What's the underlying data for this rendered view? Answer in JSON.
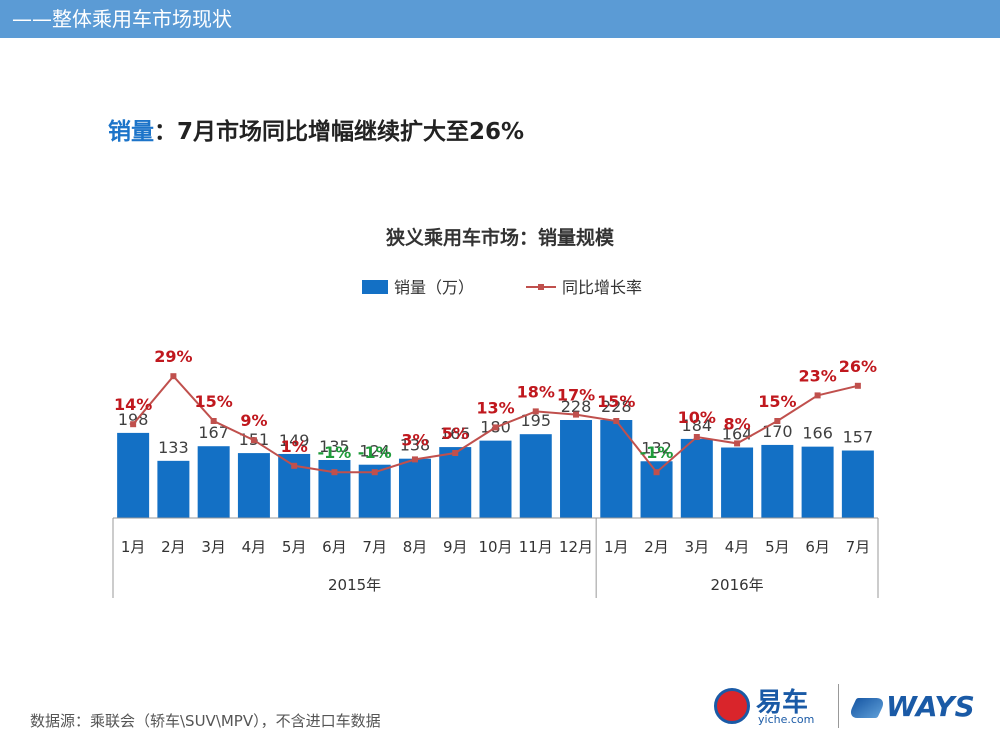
{
  "header": {
    "title": "——整体乘用车市场现状"
  },
  "headline": {
    "key": "销量",
    "sep": "：",
    "rest": "7月市场同比增幅继续扩大至26%"
  },
  "chart_data": {
    "type": "bar",
    "title": "狭义乘用车市场：销量规模",
    "legend": {
      "placement": "top",
      "bar_label": "销量（万）",
      "line_label": "同比增长率"
    },
    "categories": [
      "1月",
      "2月",
      "3月",
      "4月",
      "5月",
      "6月",
      "7月",
      "8月",
      "9月",
      "10月",
      "11月",
      "12月",
      "1月",
      "2月",
      "3月",
      "4月",
      "5月",
      "6月",
      "7月"
    ],
    "groups": [
      {
        "label": "2015年",
        "count": 12
      },
      {
        "label": "2016年",
        "count": 7
      }
    ],
    "series": [
      {
        "name": "销量（万）",
        "type": "bar",
        "values": [
          198,
          133,
          167,
          151,
          149,
          135,
          124,
          138,
          165,
          180,
          195,
          228,
          228,
          132,
          184,
          164,
          170,
          166,
          157
        ]
      },
      {
        "name": "同比增长率",
        "type": "line",
        "values": [
          14,
          29,
          15,
          9,
          1,
          -1,
          -1,
          3,
          5,
          13,
          18,
          17,
          15,
          -1,
          10,
          8,
          15,
          23,
          26
        ]
      }
    ],
    "colors": {
      "bar": "#1370c5",
      "line": "#c0504d",
      "positive_label": "#c0181e",
      "negative_label": "#1f9b3a",
      "bar_label": "#404040"
    },
    "grid": false
  },
  "footer": {
    "note": "数据源：乘联会（轿车\\SUV\\MPV），不含进口车数据"
  },
  "logos": {
    "yiche_main": "易车",
    "yiche_sub": "yiche.com",
    "ways": "WAYS"
  }
}
